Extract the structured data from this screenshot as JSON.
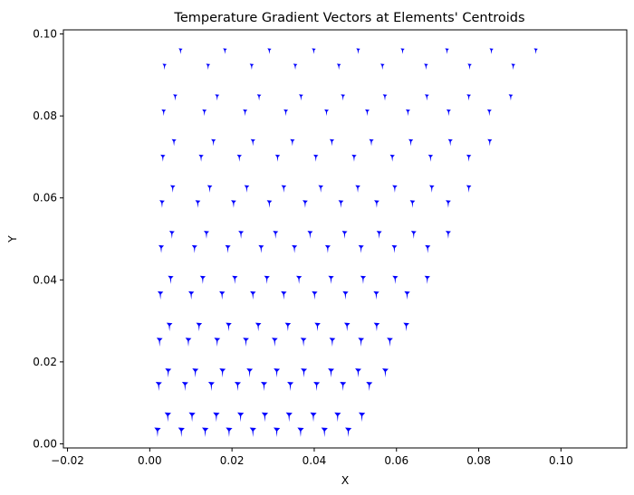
{
  "chart_data": {
    "type": "quiver",
    "title": "Temperature Gradient Vectors at Elements' Centroids",
    "xlabel": "X",
    "ylabel": "Y",
    "xlim": [
      -0.021,
      0.116
    ],
    "ylim": [
      -0.001,
      0.101
    ],
    "xticks": [
      -0.02,
      0.0,
      0.02,
      0.04,
      0.06,
      0.08,
      0.1
    ],
    "xtick_labels": [
      "−0.02",
      "0.00",
      "0.02",
      "0.04",
      "0.06",
      "0.08",
      "0.10"
    ],
    "yticks": [
      0.0,
      0.02,
      0.04,
      0.06,
      0.08,
      0.1
    ],
    "ytick_labels": [
      "0.00",
      "0.02",
      "0.04",
      "0.06",
      "0.08",
      "0.10"
    ],
    "grid": false,
    "arrow_color": "#0000ff",
    "layers": [
      {
        "y0": 0.0028,
        "x0": 0.0019,
        "dx": 0.0058,
        "n": 9,
        "mag": 1.0
      },
      {
        "y0": 0.0065,
        "x0": 0.0044,
        "dx": 0.0059,
        "n": 9,
        "mag": 1.0
      },
      {
        "y0": 0.014,
        "x0": 0.0022,
        "dx": 0.0064,
        "n": 9,
        "mag": 0.97
      },
      {
        "y0": 0.0173,
        "x0": 0.0045,
        "dx": 0.0066,
        "n": 9,
        "mag": 0.95
      },
      {
        "y0": 0.0248,
        "x0": 0.0024,
        "dx": 0.007,
        "n": 9,
        "mag": 0.92
      },
      {
        "y0": 0.0285,
        "x0": 0.0048,
        "dx": 0.0072,
        "n": 9,
        "mag": 0.9
      },
      {
        "y0": 0.0362,
        "x0": 0.0026,
        "dx": 0.0075,
        "n": 9,
        "mag": 0.87
      },
      {
        "y0": 0.04,
        "x0": 0.0051,
        "dx": 0.0078,
        "n": 9,
        "mag": 0.85
      },
      {
        "y0": 0.0475,
        "x0": 0.0028,
        "dx": 0.0081,
        "n": 9,
        "mag": 0.82
      },
      {
        "y0": 0.051,
        "x0": 0.0054,
        "dx": 0.0084,
        "n": 9,
        "mag": 0.8
      },
      {
        "y0": 0.0585,
        "x0": 0.003,
        "dx": 0.0087,
        "n": 9,
        "mag": 0.77
      },
      {
        "y0": 0.0622,
        "x0": 0.0056,
        "dx": 0.009,
        "n": 9,
        "mag": 0.74
      },
      {
        "y0": 0.0697,
        "x0": 0.0032,
        "dx": 0.0093,
        "n": 9,
        "mag": 0.71
      },
      {
        "y0": 0.0735,
        "x0": 0.0059,
        "dx": 0.0096,
        "n": 9,
        "mag": 0.68
      },
      {
        "y0": 0.0808,
        "x0": 0.0034,
        "dx": 0.0099,
        "n": 9,
        "mag": 0.65
      },
      {
        "y0": 0.0845,
        "x0": 0.0062,
        "dx": 0.0102,
        "n": 9,
        "mag": 0.62
      },
      {
        "y0": 0.092,
        "x0": 0.0036,
        "dx": 0.0106,
        "n": 9,
        "mag": 0.58
      },
      {
        "y0": 0.0958,
        "x0": 0.0075,
        "dx": 0.0108,
        "n": 9,
        "mag": 0.55
      }
    ]
  }
}
